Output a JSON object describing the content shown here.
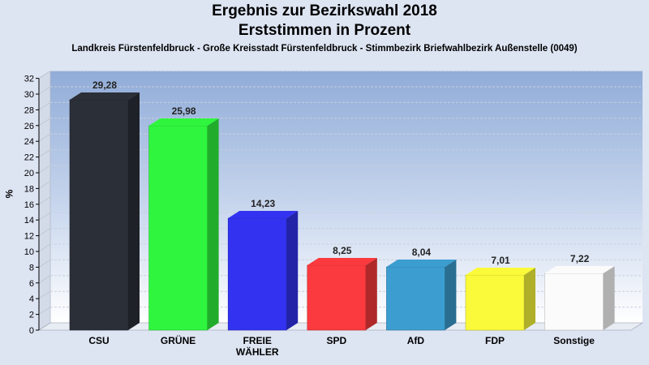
{
  "chart_data": {
    "type": "bar",
    "title": "Ergebnis zur Bezirkswahl 2018",
    "title2": "Erststimmen in Prozent",
    "subtitle": "Landkreis Fürstenfeldbruck - Große Kreisstadt Fürstenfeldbruck - Stimmbezirk Briefwahlbezirk Außenstelle (0049)",
    "ylabel": "%",
    "ylim": [
      0,
      32
    ],
    "yticks": [
      0,
      2,
      4,
      6,
      8,
      10,
      12,
      14,
      16,
      18,
      20,
      22,
      24,
      26,
      28,
      30,
      32
    ],
    "categories": [
      "CSU",
      "GRÜNE",
      "FREIE WÄHLER",
      "SPD",
      "AfD",
      "FDP",
      "Sonstige"
    ],
    "category_lines": [
      [
        "CSU"
      ],
      [
        "GRÜNE"
      ],
      [
        "FREIE",
        "WÄHLER"
      ],
      [
        "SPD"
      ],
      [
        "AfD"
      ],
      [
        "FDP"
      ],
      [
        "Sonstige"
      ]
    ],
    "values": [
      29.28,
      25.98,
      14.23,
      8.25,
      8.04,
      7.01,
      7.22
    ],
    "value_labels": [
      "29,28",
      "25,98",
      "14,23",
      "8,25",
      "8,04",
      "7,01",
      "7,22"
    ],
    "colors": [
      "#2b2f38",
      "#2ff53e",
      "#3232f0",
      "#fa3a3e",
      "#3c9dd0",
      "#fafa3a",
      "#fbfbfb"
    ],
    "grid": true
  }
}
